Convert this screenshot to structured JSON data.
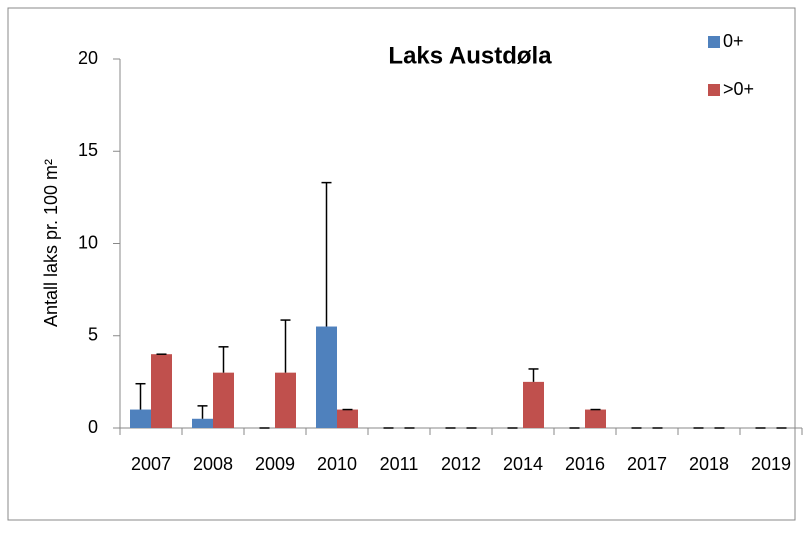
{
  "chart_data": {
    "type": "bar",
    "title": "Laks Austdøla",
    "y_label": "Antall laks pr. 100 m²",
    "categories": [
      "2007",
      "2008",
      "2009",
      "2010",
      "2011",
      "2012",
      "2014",
      "2016",
      "2017",
      "2018",
      "2019"
    ],
    "series": [
      {
        "name": "0+",
        "color": "#4f81bd",
        "values": [
          1,
          0.5,
          0,
          5.5,
          0,
          0,
          0,
          0,
          0,
          0,
          0
        ],
        "errors": [
          1.4,
          0.7,
          0,
          7.8,
          0,
          0,
          0,
          0,
          0,
          0,
          0
        ]
      },
      {
        "name": ">0+",
        "color": "#c0504d",
        "values": [
          4,
          3,
          3,
          1,
          0,
          0,
          2.5,
          1,
          0,
          0,
          0
        ],
        "errors": [
          0,
          1.4,
          2.85,
          0,
          0,
          0,
          0.7,
          0,
          0,
          0,
          0
        ]
      }
    ],
    "ylim": [
      0,
      20
    ],
    "yticks": [
      0,
      5,
      10,
      15,
      20
    ],
    "grid": false,
    "legend": "top-right"
  }
}
